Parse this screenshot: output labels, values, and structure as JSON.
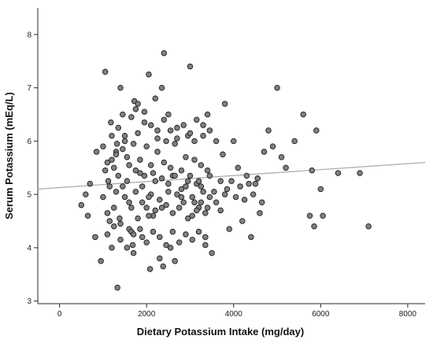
{
  "chart_data": {
    "type": "scatter",
    "title": "",
    "xlabel": "Dietary Potassium Intake (mg/day)",
    "ylabel": "Serum Potassium (mEq/L)",
    "xlim": [
      -500,
      8400
    ],
    "ylim": [
      2.95,
      8.5
    ],
    "x_ticks": [
      0,
      2000,
      4000,
      6000,
      8000
    ],
    "y_ticks": [
      3,
      4,
      5,
      6,
      7,
      8
    ],
    "grid": false,
    "legend": "none",
    "colors": {
      "point_fill": "#808080",
      "point_edge": "#1f1f1f",
      "fit_line": "#a9a9a9"
    },
    "fit_line": {
      "x": [
        -500,
        8400
      ],
      "y": [
        5.1,
        5.6
      ]
    },
    "points": [
      [
        500,
        4.8
      ],
      [
        600,
        5.0
      ],
      [
        650,
        4.6
      ],
      [
        700,
        5.2
      ],
      [
        820,
        4.2
      ],
      [
        850,
        5.8
      ],
      [
        950,
        3.75
      ],
      [
        1000,
        5.9
      ],
      [
        1050,
        7.3
      ],
      [
        1100,
        5.6
      ],
      [
        1120,
        5.25
      ],
      [
        1150,
        4.5
      ],
      [
        1180,
        6.35
      ],
      [
        1200,
        4.0
      ],
      [
        1250,
        5.5
      ],
      [
        1300,
        5.8
      ],
      [
        1320,
        5.95
      ],
      [
        1330,
        3.25
      ],
      [
        1380,
        4.55
      ],
      [
        1400,
        7.0
      ],
      [
        1450,
        6.5
      ],
      [
        1500,
        6.1
      ],
      [
        1550,
        5.7
      ],
      [
        1600,
        4.35
      ],
      [
        1650,
        4.3
      ],
      [
        1680,
        4.05
      ],
      [
        1700,
        3.9
      ],
      [
        1720,
        6.75
      ],
      [
        1750,
        6.6
      ],
      [
        1800,
        6.7
      ],
      [
        1850,
        5.4
      ],
      [
        1900,
        4.2
      ],
      [
        1950,
        6.35
      ],
      [
        2000,
        4.75
      ],
      [
        2050,
        7.25
      ],
      [
        2080,
        3.6
      ],
      [
        2100,
        5.55
      ],
      [
        2150,
        4.6
      ],
      [
        2200,
        6.8
      ],
      [
        2250,
        6.2
      ],
      [
        2300,
        3.8
      ],
      [
        2350,
        7.0
      ],
      [
        2380,
        3.65
      ],
      [
        2400,
        7.65
      ],
      [
        2450,
        6.0
      ],
      [
        2500,
        6.5
      ],
      [
        2550,
        4.0
      ],
      [
        2600,
        5.35
      ],
      [
        2650,
        3.75
      ],
      [
        2700,
        6.25
      ],
      [
        2800,
        5.1
      ],
      [
        2900,
        5.7
      ],
      [
        2950,
        6.1
      ],
      [
        3000,
        7.4
      ],
      [
        3050,
        4.6
      ],
      [
        3100,
        6.0
      ],
      [
        3150,
        5.2
      ],
      [
        3200,
        4.75
      ],
      [
        3250,
        5.55
      ],
      [
        3300,
        6.3
      ],
      [
        3350,
        4.2
      ],
      [
        3400,
        6.5
      ],
      [
        3450,
        5.35
      ],
      [
        3500,
        3.9
      ],
      [
        3600,
        6.0
      ],
      [
        3700,
        4.7
      ],
      [
        3800,
        6.7
      ],
      [
        3850,
        5.1
      ],
      [
        3900,
        4.35
      ],
      [
        4000,
        6.0
      ],
      [
        4100,
        5.5
      ],
      [
        4200,
        4.5
      ],
      [
        4300,
        5.35
      ],
      [
        4400,
        4.2
      ],
      [
        4500,
        5.2
      ],
      [
        4600,
        4.65
      ],
      [
        4700,
        5.8
      ],
      [
        4800,
        6.2
      ],
      [
        4900,
        5.9
      ],
      [
        5000,
        7.0
      ],
      [
        5100,
        5.7
      ],
      [
        5200,
        5.5
      ],
      [
        5400,
        6.0
      ],
      [
        5600,
        6.5
      ],
      [
        5750,
        4.6
      ],
      [
        5800,
        5.45
      ],
      [
        5850,
        4.4
      ],
      [
        5900,
        6.2
      ],
      [
        6000,
        5.1
      ],
      [
        6050,
        4.6
      ],
      [
        6400,
        5.4
      ],
      [
        6900,
        5.4
      ],
      [
        7100,
        4.4
      ],
      [
        1000,
        4.95
      ],
      [
        1050,
        5.45
      ],
      [
        1100,
        4.65
      ],
      [
        1150,
        5.15
      ],
      [
        1200,
        5.65
      ],
      [
        1250,
        4.75
      ],
      [
        1300,
        5.05
      ],
      [
        1350,
        5.35
      ],
      [
        1400,
        4.45
      ],
      [
        1450,
        5.85
      ],
      [
        1500,
        4.95
      ],
      [
        1550,
        5.25
      ],
      [
        1600,
        5.55
      ],
      [
        1650,
        4.75
      ],
      [
        1700,
        5.95
      ],
      [
        1750,
        5.05
      ],
      [
        1800,
        4.55
      ],
      [
        1850,
        5.65
      ],
      [
        1900,
        4.85
      ],
      [
        1950,
        5.35
      ],
      [
        2000,
        5.9
      ],
      [
        2050,
        4.6
      ],
      [
        2100,
        5.0
      ],
      [
        2150,
        5.4
      ],
      [
        2200,
        4.7
      ],
      [
        2250,
        5.8
      ],
      [
        2300,
        4.9
      ],
      [
        2350,
        5.3
      ],
      [
        2400,
        5.6
      ],
      [
        2450,
        4.8
      ],
      [
        2500,
        5.2
      ],
      [
        2550,
        5.5
      ],
      [
        2600,
        4.65
      ],
      [
        2650,
        5.95
      ],
      [
        2700,
        5.0
      ],
      [
        2750,
        4.75
      ],
      [
        2800,
        5.45
      ],
      [
        2850,
        4.85
      ],
      [
        2900,
        5.15
      ],
      [
        2950,
        4.55
      ],
      [
        3000,
        5.35
      ],
      [
        3050,
        4.95
      ],
      [
        3100,
        5.65
      ],
      [
        3150,
        4.7
      ],
      [
        3200,
        5.25
      ],
      [
        3250,
        4.85
      ],
      [
        3300,
        5.05
      ],
      [
        3350,
        4.65
      ],
      [
        3400,
        5.45
      ],
      [
        3450,
        4.95
      ],
      [
        1200,
        6.1
      ],
      [
        1350,
        6.25
      ],
      [
        1500,
        6.0
      ],
      [
        1650,
        6.45
      ],
      [
        1800,
        6.15
      ],
      [
        1950,
        6.55
      ],
      [
        2100,
        6.3
      ],
      [
        2250,
        6.05
      ],
      [
        2400,
        6.4
      ],
      [
        2550,
        6.2
      ],
      [
        2700,
        6.05
      ],
      [
        2850,
        6.3
      ],
      [
        3000,
        6.15
      ],
      [
        3150,
        6.4
      ],
      [
        3300,
        6.1
      ],
      [
        3450,
        6.2
      ],
      [
        1100,
        4.25
      ],
      [
        1250,
        4.4
      ],
      [
        1400,
        4.15
      ],
      [
        1550,
        4.0
      ],
      [
        1700,
        4.25
      ],
      [
        1850,
        4.35
      ],
      [
        2000,
        4.1
      ],
      [
        2150,
        4.3
      ],
      [
        2300,
        4.2
      ],
      [
        2450,
        4.05
      ],
      [
        2600,
        4.3
      ],
      [
        2750,
        4.1
      ],
      [
        2900,
        4.25
      ],
      [
        3050,
        4.15
      ],
      [
        3200,
        4.3
      ],
      [
        3350,
        4.05
      ],
      [
        1300,
        5.75
      ],
      [
        1450,
        5.15
      ],
      [
        1600,
        4.85
      ],
      [
        1750,
        5.45
      ],
      [
        1900,
        5.15
      ],
      [
        2050,
        4.95
      ],
      [
        2200,
        5.25
      ],
      [
        2350,
        4.75
      ],
      [
        2500,
        5.05
      ],
      [
        2650,
        5.35
      ],
      [
        2800,
        4.95
      ],
      [
        2950,
        5.25
      ],
      [
        3100,
        4.85
      ],
      [
        3250,
        5.15
      ],
      [
        3400,
        4.75
      ],
      [
        3550,
        5.05
      ],
      [
        3600,
        4.85
      ],
      [
        3700,
        5.25
      ],
      [
        3750,
        5.75
      ],
      [
        3800,
        5.0
      ],
      [
        3950,
        5.25
      ],
      [
        4050,
        4.95
      ],
      [
        4150,
        5.15
      ],
      [
        4250,
        4.9
      ],
      [
        4350,
        5.2
      ],
      [
        4450,
        5.0
      ],
      [
        4550,
        5.3
      ],
      [
        4650,
        4.85
      ]
    ]
  }
}
